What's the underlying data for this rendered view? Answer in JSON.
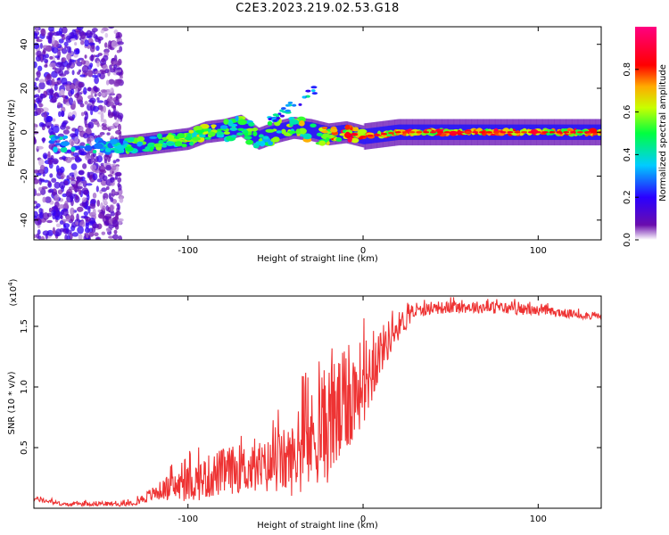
{
  "title": "C2E3.2023.219.02.53.G18",
  "chart_data": [
    {
      "type": "heatmap",
      "title": "",
      "xlabel": "Height of straight line (km)",
      "ylabel": "Frequency (Hz)",
      "xlim": [
        -188,
        136
      ],
      "ylim": [
        -49,
        48
      ],
      "x_ticks": [
        -100,
        0,
        100
      ],
      "y_ticks": [
        -40,
        -20,
        0,
        20,
        40
      ],
      "colorbar": {
        "label": "Normalized spectral amplitude",
        "ticks": [
          "0.0",
          "0.2",
          "0.4",
          "0.6",
          "0.8"
        ],
        "range": [
          0,
          1
        ],
        "colors": [
          "#ffffff",
          "#6a0dad",
          "#0000ff",
          "#00ccff",
          "#00ff00",
          "#ffff00",
          "#ff0000",
          "#ff0080"
        ]
      },
      "noise_region": {
        "x": [
          -188,
          -138
        ],
        "amplitude": 0.15
      },
      "signal_trace": [
        {
          "x": -180,
          "y": -5,
          "amp": 0.45
        },
        {
          "x": -170,
          "y": -5,
          "amp": 0.4
        },
        {
          "x": -145,
          "y": -7,
          "amp": 0.45
        },
        {
          "x": -130,
          "y": -6,
          "amp": 0.6
        },
        {
          "x": -120,
          "y": -5,
          "amp": 0.55
        },
        {
          "x": -110,
          "y": -4,
          "amp": 0.6
        },
        {
          "x": -100,
          "y": -3,
          "amp": 0.65
        },
        {
          "x": -90,
          "y": 0,
          "amp": 0.7
        },
        {
          "x": -80,
          "y": 1,
          "amp": 0.55
        },
        {
          "x": -70,
          "y": 3,
          "amp": 0.6
        },
        {
          "x": -60,
          "y": -3,
          "amp": 0.55
        },
        {
          "x": -50,
          "y": 0,
          "amp": 0.6
        },
        {
          "x": -40,
          "y": 2,
          "amp": 0.65
        },
        {
          "x": -30,
          "y": 1,
          "amp": 0.7
        },
        {
          "x": -20,
          "y": -1,
          "amp": 0.8
        },
        {
          "x": -10,
          "y": 0,
          "amp": 0.9
        },
        {
          "x": 0,
          "y": -2,
          "amp": 0.95
        },
        {
          "x": 20,
          "y": 0,
          "amp": 0.92
        },
        {
          "x": 60,
          "y": 0,
          "amp": 0.9
        },
        {
          "x": 100,
          "y": 0,
          "amp": 0.88
        },
        {
          "x": 136,
          "y": 0,
          "amp": 0.85
        }
      ]
    },
    {
      "type": "line",
      "title": "",
      "xlabel": "Height of straight line (km)",
      "ylabel": "SNR (10 * v/v)",
      "y_multiplier": "(x10",
      "y_multiplier_exp": "4",
      "y_multiplier_close": ")",
      "xlim": [
        -188,
        136
      ],
      "ylim": [
        0,
        17500
      ],
      "x_ticks": [
        -100,
        0,
        100
      ],
      "y_ticks": [
        {
          "v": 5000,
          "label": "0.5"
        },
        {
          "v": 10000,
          "label": "1.0"
        },
        {
          "v": 15000,
          "label": "1.5"
        }
      ],
      "series": [
        {
          "color": "#ee3333",
          "x": [
            -188,
            -170,
            -150,
            -140,
            -130,
            -115,
            -100,
            -90,
            -80,
            -70,
            -60,
            -50,
            -40,
            -30,
            -25,
            -20,
            -15,
            -10,
            -5,
            0,
            5,
            10,
            20,
            30,
            40,
            60,
            80,
            100,
            120,
            136
          ],
          "mean": [
            800,
            300,
            400,
            300,
            500,
            1500,
            2000,
            2500,
            3000,
            3300,
            3100,
            3700,
            4000,
            5500,
            6500,
            7000,
            7500,
            8500,
            9500,
            10500,
            11500,
            13000,
            15000,
            16200,
            16500,
            16600,
            16500,
            16300,
            16000,
            15800
          ],
          "spread": [
            200,
            150,
            200,
            150,
            250,
            800,
            1500,
            1800,
            2000,
            2000,
            2000,
            2500,
            3000,
            4000,
            4500,
            5000,
            5000,
            4500,
            4000,
            3500,
            3000,
            2000,
            1200,
            500,
            500,
            500,
            500,
            400,
            350,
            300
          ]
        }
      ]
    }
  ]
}
